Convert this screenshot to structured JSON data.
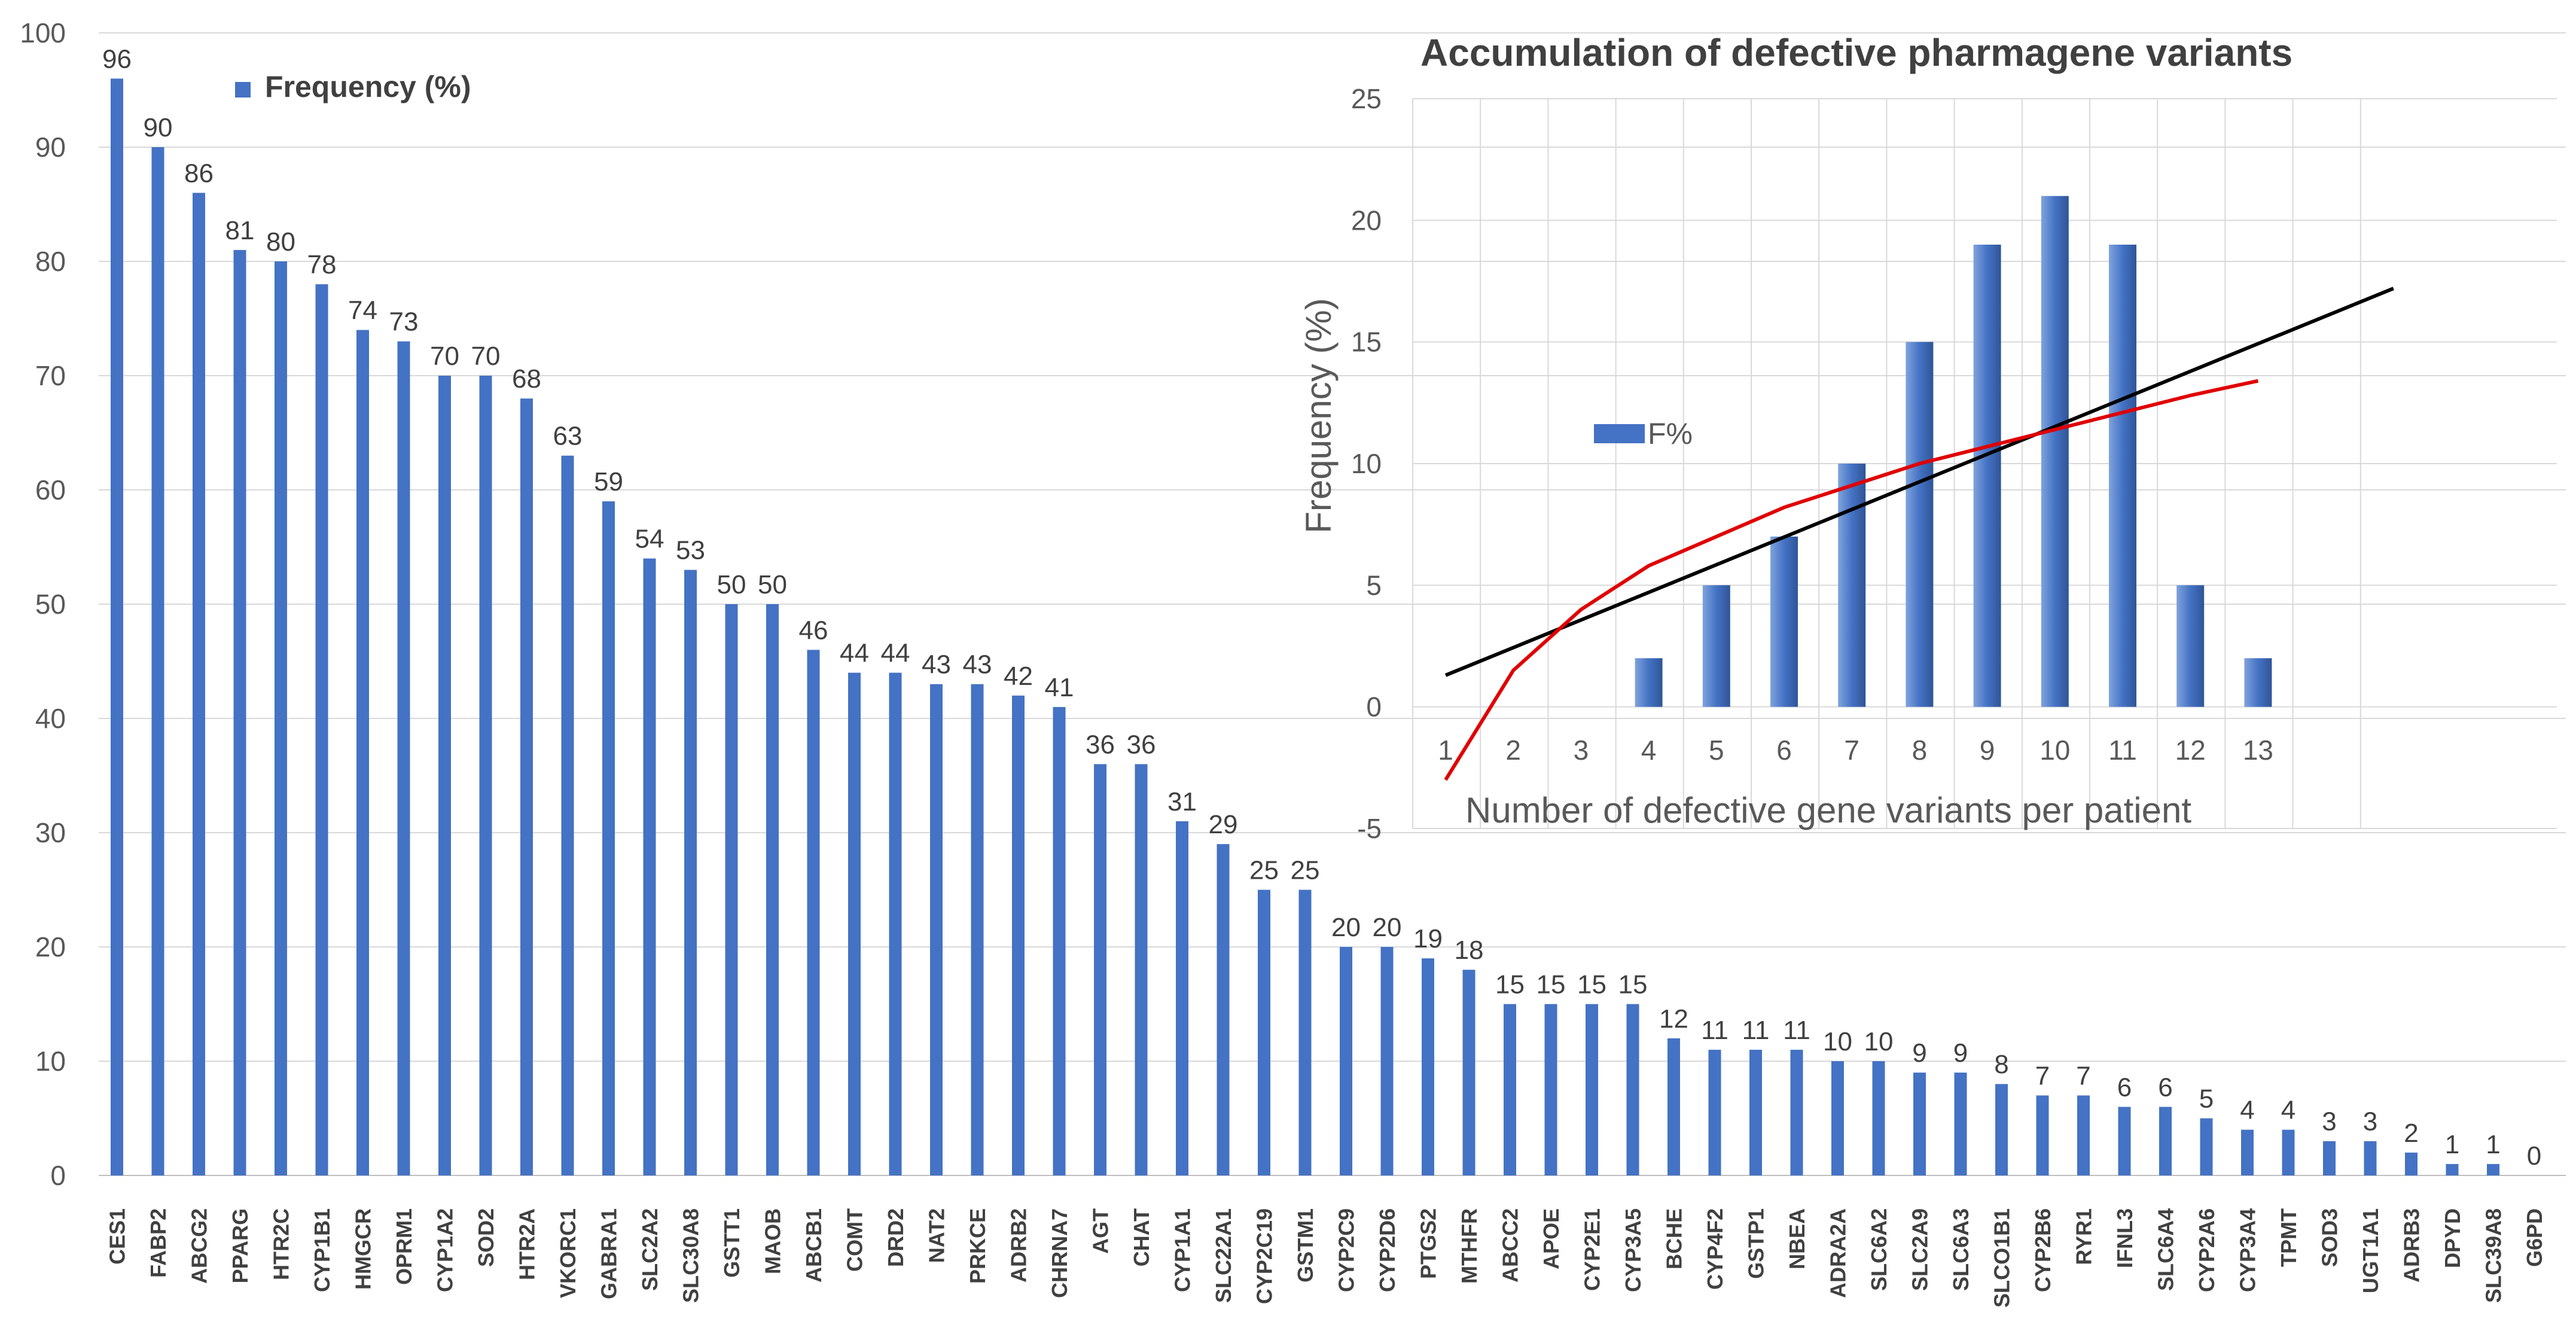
{
  "chart_data": [
    {
      "type": "bar",
      "title": "",
      "xlabel": "",
      "ylabel": "",
      "legend": "Frequency (%)",
      "ylim": [
        0,
        100
      ],
      "yticks": [
        0,
        10,
        20,
        30,
        40,
        50,
        60,
        70,
        80,
        90,
        100
      ],
      "grid": true,
      "color": "#4472C4",
      "categories": [
        "CES1",
        "FABP2",
        "ABCG2",
        "PPARG",
        "HTR2C",
        "CYP1B1",
        "HMGCR",
        "OPRM1",
        "CYP1A2",
        "SOD2",
        "HTR2A",
        "VKORC1",
        "GABRA1",
        "SLC2A2",
        "SLC30A8",
        "GSTT1",
        "MAOB",
        "ABCB1",
        "COMT",
        "DRD2",
        "NAT2",
        "PRKCE",
        "ADRB2",
        "CHRNA7",
        "AGT",
        "CHAT",
        "CYP1A1",
        "SLC22A1",
        "CYP2C19",
        "GSTM1",
        "CYP2C9",
        "CYP2D6",
        "PTGS2",
        "MTHFR",
        "ABCC2",
        "APOE",
        "CYP2E1",
        "CYP3A5",
        "BCHE",
        "CYP4F2",
        "GSTP1",
        "NBEA",
        "ADRA2A",
        "SLC6A2",
        "SLC2A9",
        "SLC6A3",
        "SLCO1B1",
        "CYP2B6",
        "RYR1",
        "IFNL3",
        "SLC6A4",
        "CYP2A6",
        "CYP3A4",
        "TPMT",
        "SOD3",
        "UGT1A1",
        "ADRB3",
        "DPYD",
        "SLC39A8",
        "G6PD"
      ],
      "values": [
        96,
        90,
        86,
        81,
        80,
        78,
        74,
        73,
        70,
        70,
        68,
        63,
        59,
        54,
        53,
        50,
        50,
        46,
        44,
        44,
        43,
        43,
        42,
        41,
        36,
        36,
        31,
        29,
        25,
        25,
        20,
        20,
        19,
        18,
        15,
        15,
        15,
        15,
        12,
        11,
        11,
        11,
        10,
        10,
        9,
        9,
        8,
        7,
        7,
        6,
        6,
        5,
        4,
        4,
        3,
        3,
        2,
        1,
        1,
        0
      ]
    },
    {
      "type": "bar",
      "title": "Accumulation of defective pharmagene variants",
      "xlabel": "Number of defective gene variants per patient",
      "ylabel": "Frequency (%)",
      "legend": "F%",
      "ylim": [
        -5,
        25
      ],
      "yticks": [
        -5,
        0,
        5,
        10,
        15,
        20,
        25
      ],
      "grid": true,
      "color": "#4472C4",
      "categories": [
        "1",
        "2",
        "3",
        "4",
        "5",
        "6",
        "7",
        "8",
        "9",
        "10",
        "11",
        "12",
        "13"
      ],
      "values": [
        0,
        0,
        0,
        2,
        5,
        7,
        10,
        15,
        19,
        21,
        19,
        5,
        2
      ],
      "linear_trend": {
        "color": "#000000",
        "x": [
          1,
          15
        ],
        "y": [
          1.3,
          17.2
        ]
      },
      "log_trend": {
        "color": "#E00000",
        "x": [
          1,
          2,
          3,
          4,
          6,
          8,
          10,
          12,
          13
        ],
        "y": [
          -3,
          1.5,
          4.0,
          5.8,
          8.2,
          10.0,
          11.4,
          12.8,
          13.4
        ]
      }
    }
  ]
}
